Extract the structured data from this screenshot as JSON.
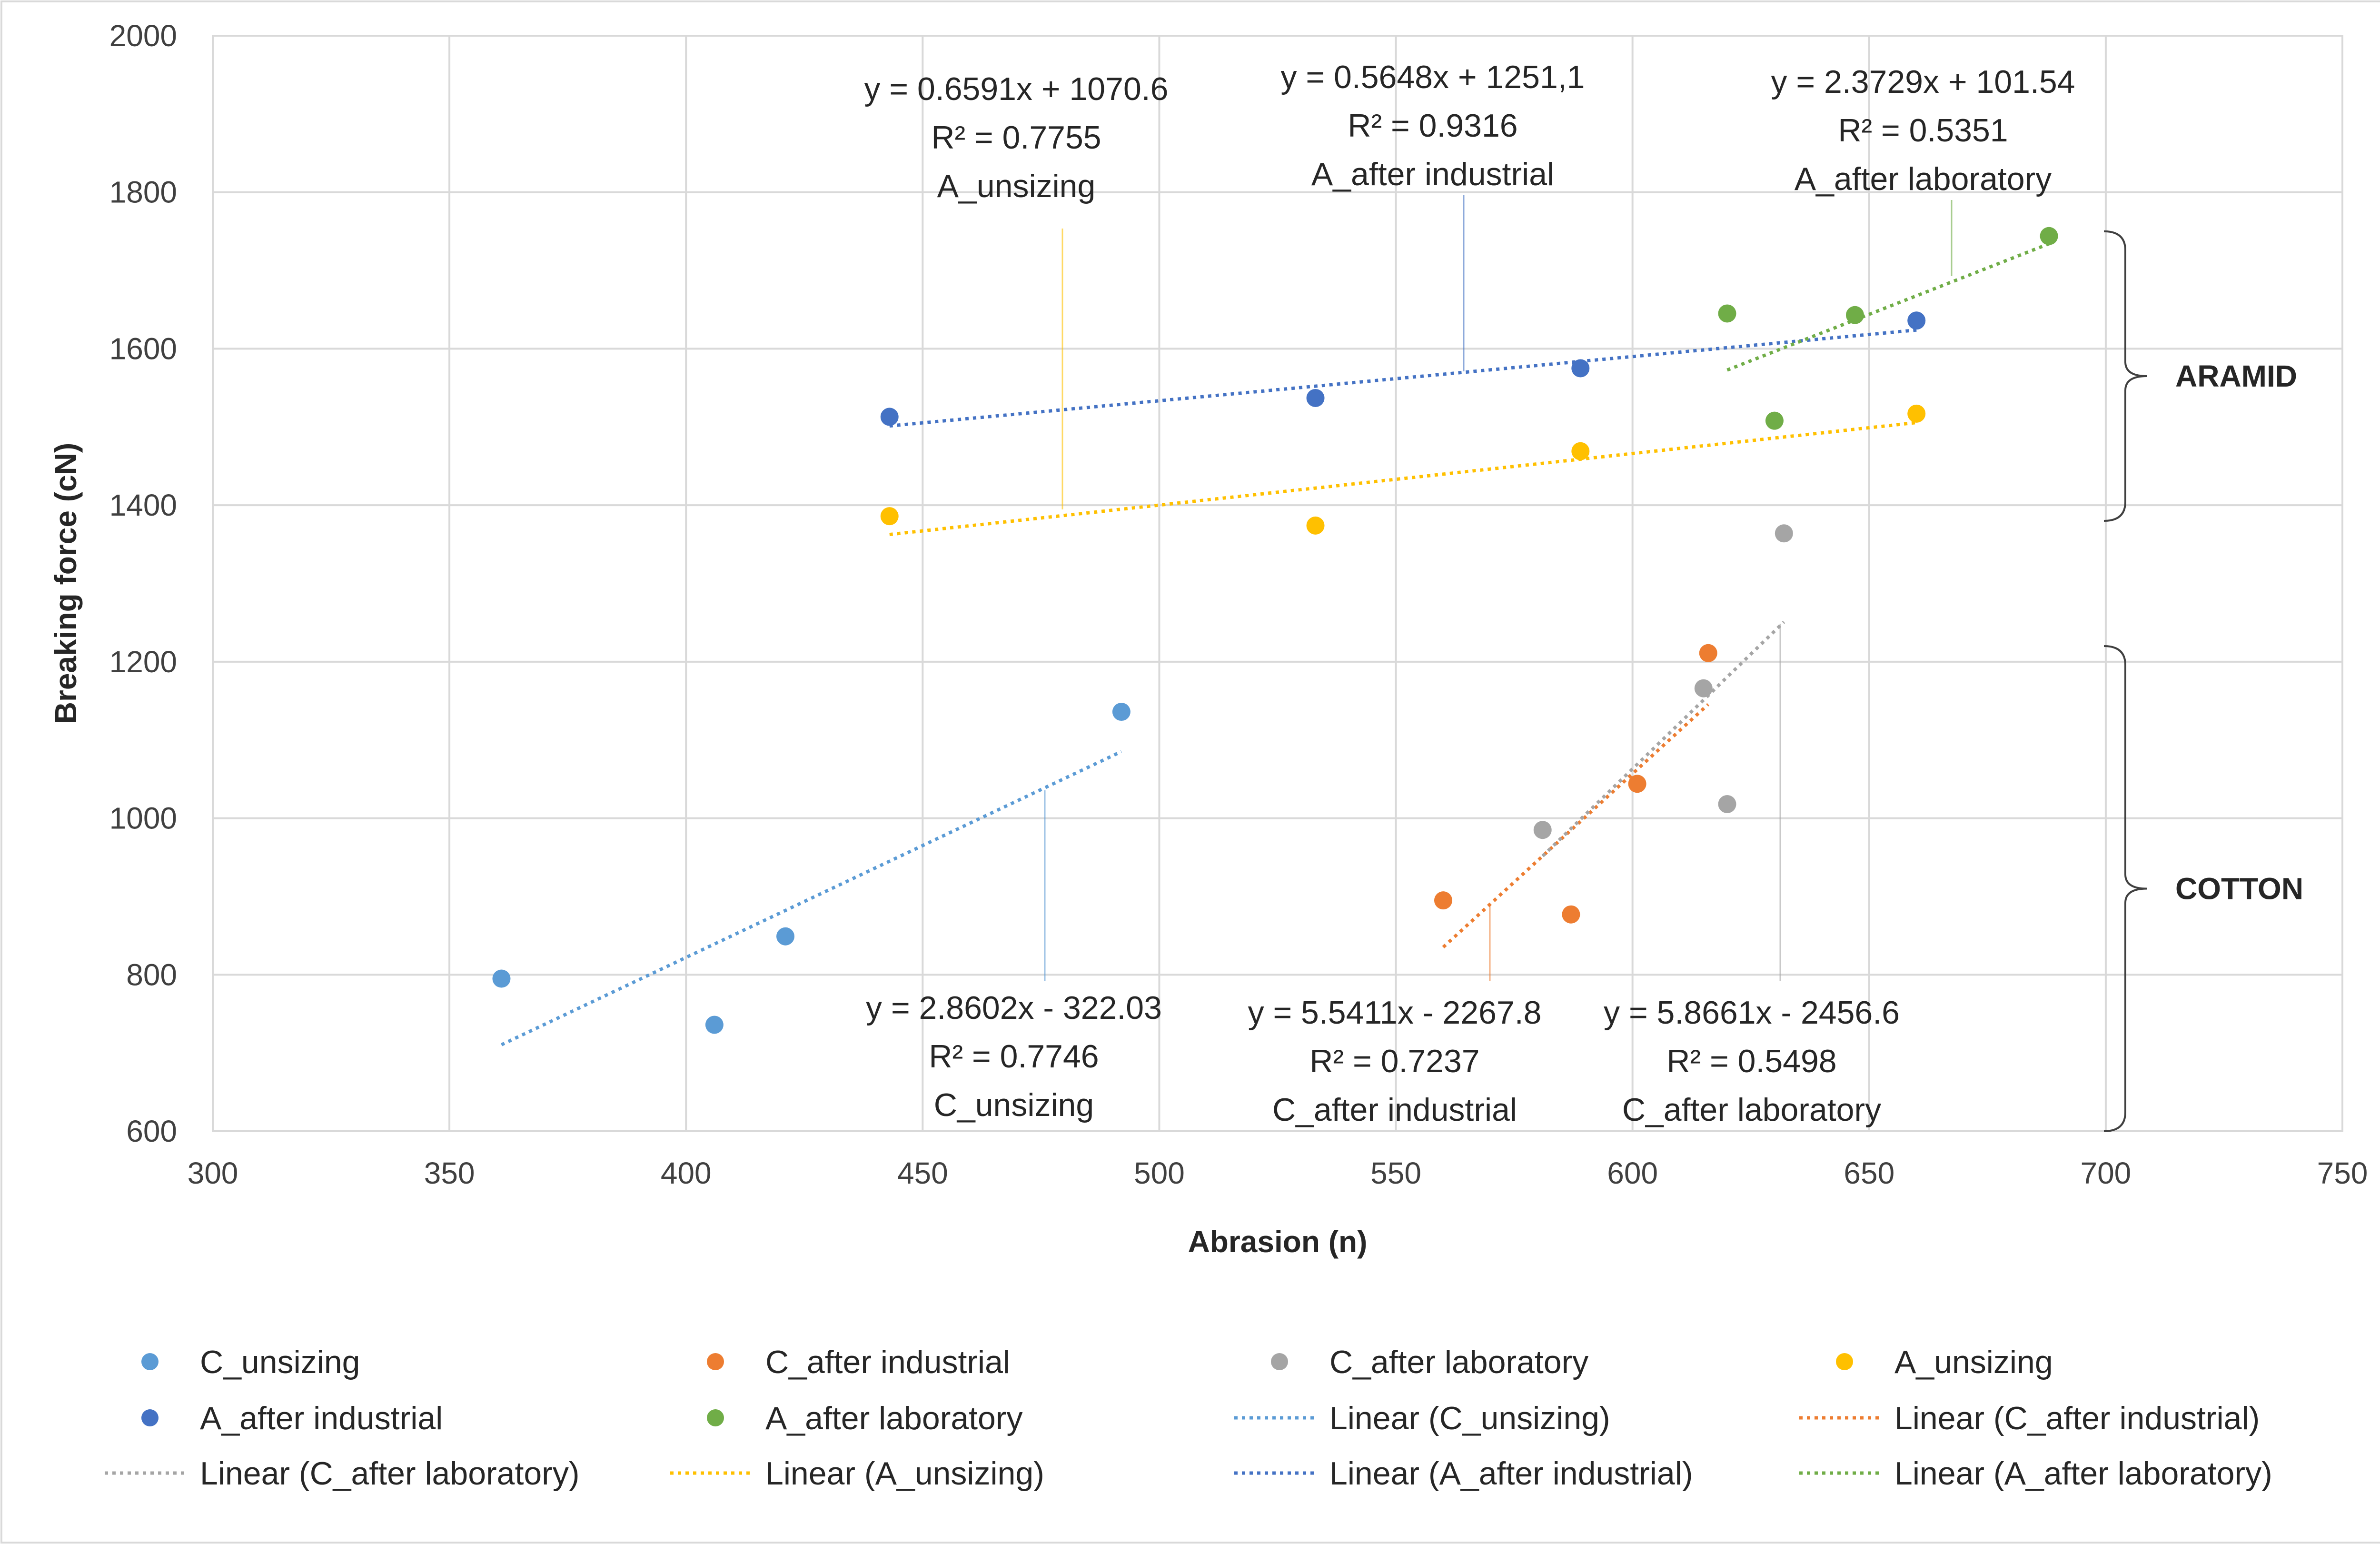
{
  "chart_data": {
    "type": "scatter",
    "xlabel": "Abrasion (n)",
    "ylabel": "Breaking force (cN)",
    "xlim": [
      300,
      750
    ],
    "ylim": [
      600,
      2000
    ],
    "x_ticks": [
      300,
      350,
      400,
      450,
      500,
      550,
      600,
      650,
      700,
      750
    ],
    "y_ticks": [
      600,
      800,
      1000,
      1200,
      1400,
      1600,
      1800,
      2000
    ],
    "grid": true,
    "legend_position": "bottom",
    "series": [
      {
        "name": "C_unsizing",
        "color": "#5B9BD5",
        "points": [
          [
            361,
            795
          ],
          [
            406,
            736
          ],
          [
            421,
            849
          ],
          [
            492,
            1136
          ]
        ]
      },
      {
        "name": "C_after industrial",
        "color": "#ED7D31",
        "points": [
          [
            560,
            895
          ],
          [
            587,
            877
          ],
          [
            601,
            1044
          ],
          [
            616,
            1211
          ]
        ]
      },
      {
        "name": "C_after laboratory",
        "color": "#A5A5A5",
        "points": [
          [
            581,
            985
          ],
          [
            615,
            1166
          ],
          [
            620,
            1018
          ],
          [
            632,
            1364
          ]
        ]
      },
      {
        "name": "A_unsizing",
        "color": "#FFC000",
        "points": [
          [
            443,
            1386
          ],
          [
            533,
            1374
          ],
          [
            589,
            1469
          ],
          [
            660,
            1517
          ]
        ]
      },
      {
        "name": "A_after industrial",
        "color": "#4472C4",
        "points": [
          [
            443,
            1513
          ],
          [
            533,
            1537
          ],
          [
            589,
            1575
          ],
          [
            660,
            1636
          ]
        ]
      },
      {
        "name": "A_after laboratory",
        "color": "#70AD47",
        "points": [
          [
            620,
            1645
          ],
          [
            630,
            1508
          ],
          [
            647,
            1643
          ],
          [
            688,
            1744
          ]
        ]
      }
    ],
    "trendlines": [
      {
        "name": "Linear (C_unsizing)",
        "color": "#5B9BD5",
        "slope": 2.8602,
        "intercept": -322.03,
        "x_range": [
          361,
          492
        ],
        "equation": "y = 2.8602x - 322.03",
        "r2": "R² = 0.7746",
        "label": "C_unsizing"
      },
      {
        "name": "Linear (C_after industrial)",
        "color": "#ED7D31",
        "slope": 5.5411,
        "intercept": -2267.8,
        "x_range": [
          560,
          616
        ],
        "equation": "y = 5.5411x - 2267.8",
        "r2": "R² = 0.7237",
        "label": "C_after industrial"
      },
      {
        "name": "Linear (C_after laboratory)",
        "color": "#A5A5A5",
        "slope": 5.8661,
        "intercept": -2456.6,
        "x_range": [
          581,
          632
        ],
        "equation": "y = 5.8661x - 2456.6",
        "r2": "R² = 0.5498",
        "label": "C_after laboratory"
      },
      {
        "name": "Linear (A_unsizing)",
        "color": "#FFC000",
        "slope": 0.6591,
        "intercept": 1070.6,
        "x_range": [
          443,
          660
        ],
        "equation": "y = 0.6591x + 1070.6",
        "r2": "R² = 0.7755",
        "label": "A_unsizing"
      },
      {
        "name": "Linear (A_after industrial)",
        "color": "#4472C4",
        "slope": 0.5648,
        "intercept": 1251.1,
        "x_range": [
          443,
          660
        ],
        "equation": "y = 0.5648x + 1251,1",
        "r2": "R² = 0.9316",
        "label": "A_after industrial"
      },
      {
        "name": "Linear (A_after laboratory)",
        "color": "#70AD47",
        "slope": 2.3729,
        "intercept": 101.54,
        "x_range": [
          620,
          688
        ],
        "equation": "y = 2.3729x + 101.54",
        "r2": "R² = 0.5351",
        "label": "A_after laboratory"
      }
    ],
    "annotations": [
      {
        "text": "ARAMID",
        "y_range": [
          1380,
          1750
        ]
      },
      {
        "text": "COTTON",
        "y_range": [
          600,
          1220
        ]
      }
    ]
  }
}
